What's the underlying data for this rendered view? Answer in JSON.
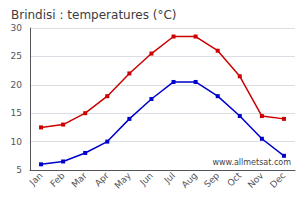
{
  "chart_data": {
    "type": "line",
    "title": "Brindisi : temperatures (°C)",
    "categories": [
      "Jan",
      "Feb",
      "Mar",
      "Apr",
      "May",
      "Jun",
      "Jul",
      "Aug",
      "Sep",
      "Oct",
      "Nov",
      "Dec"
    ],
    "series": [
      {
        "color": "#cc0000",
        "values": [
          12.5,
          13.0,
          15.0,
          18.0,
          22.0,
          25.5,
          28.5,
          28.5,
          26.0,
          21.5,
          14.5,
          14.0
        ]
      },
      {
        "color": "#0000cc",
        "values": [
          6.0,
          6.5,
          8.0,
          10.0,
          14.0,
          17.5,
          20.5,
          20.5,
          18.0,
          14.5,
          10.5,
          7.5
        ]
      }
    ],
    "ylim": [
      5,
      30
    ],
    "yticks": [
      5,
      10,
      15,
      20,
      25,
      30
    ],
    "grid": true,
    "marker": "square",
    "line_style": "solid",
    "annotations": [
      "www.allmetsat.com"
    ]
  }
}
